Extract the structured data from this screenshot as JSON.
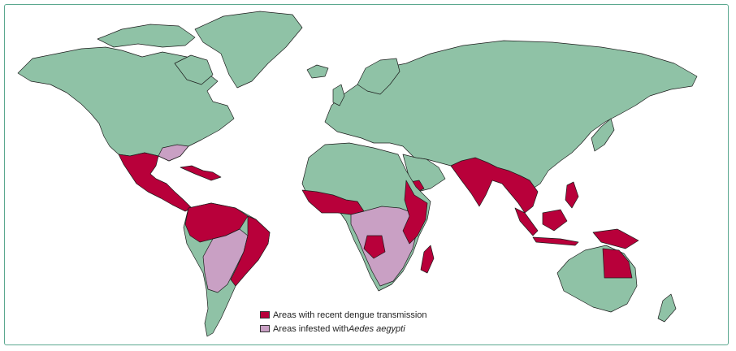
{
  "colors": {
    "land": "#8fc2a6",
    "border": "#1c1c1c",
    "dengue": "#b8003a",
    "aedes": "#c9a0c4",
    "frame": "#5aa88f"
  },
  "legend": [
    {
      "key": "dengue",
      "label": "Areas with recent dengue transmission",
      "species": ""
    },
    {
      "key": "aedes",
      "label": "Areas infested with ",
      "species": "Aedes aegypti"
    }
  ]
}
